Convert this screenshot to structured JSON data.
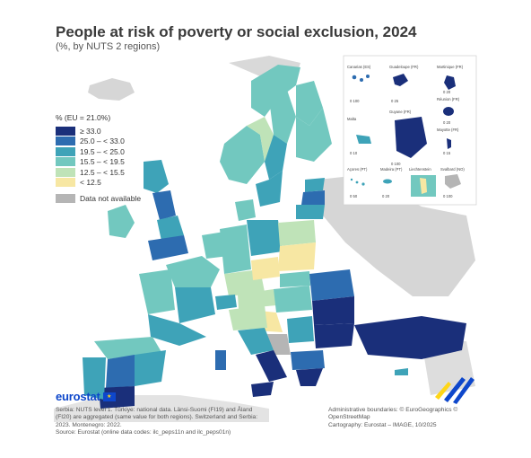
{
  "title": "People at risk of poverty or social exclusion, 2024",
  "subtitle": "(%, by NUTS 2 regions)",
  "legend": {
    "title": "% (EU = 21.0%)",
    "classes": [
      {
        "label": "≥ 33.0",
        "color": "#1a2f7a"
      },
      {
        "label": "25.0 – < 33.0",
        "color": "#2d6cb0"
      },
      {
        "label": "19.5 – < 25.0",
        "color": "#3ea3b8"
      },
      {
        "label": "15.5 – < 19.5",
        "color": "#72c8bf"
      },
      {
        "label": "12.5 – < 15.5",
        "color": "#bfe3b8"
      },
      {
        "label": "< 12.5",
        "color": "#f7e7a3"
      }
    ],
    "na_label": "Data not available",
    "na_color": "#b5b5b5"
  },
  "insets": [
    {
      "label": "Canarias (ES)",
      "scale": "0   100"
    },
    {
      "label": "Guadeloupe (FR)",
      "scale": "0   25"
    },
    {
      "label": "Martinique (FR)",
      "scale": "0   20"
    },
    {
      "label": "Réunion (FR)",
      "scale": "0   20"
    },
    {
      "label": "Malta",
      "scale": "0   10"
    },
    {
      "label": "Guyane (FR)",
      "scale": "0   100"
    },
    {
      "label": "Mayotte (FR)",
      "scale": "0   15"
    },
    {
      "label": "Açores (PT)",
      "scale": "0   50"
    },
    {
      "label": "Madeira (PT)",
      "scale": "0   20"
    },
    {
      "label": "Liechtenstein",
      "scale": "0   5"
    },
    {
      "label": "Svalbard (NO)",
      "scale": "0   100"
    }
  ],
  "brand": "eurostat",
  "notes": [
    "Serbia: NUTS level 1. Türkiye: national data. Länsi-Suomi (FI19) and Åland",
    "(FI20) are aggregated (same value for both regions). Switzerland and Serbia:",
    "2023. Montenegro: 2022.",
    "Source: Eurostat (online data codes: ilc_peps11n and ilc_peps01n)"
  ],
  "credits": [
    "Administrative boundaries: © EuroGeographics © OpenStreetMap",
    "Cartography: Eurostat – IMAGE, 10/2025"
  ]
}
